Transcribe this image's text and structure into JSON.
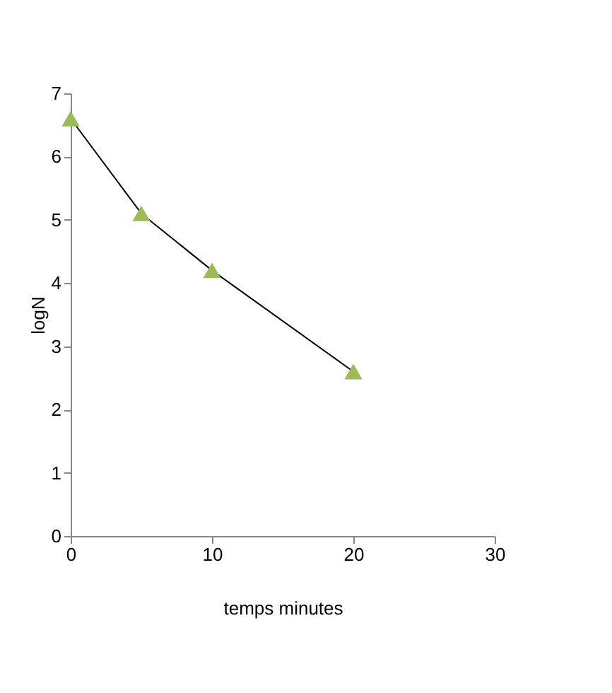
{
  "chart_data": {
    "type": "line",
    "xlabel": "temps minutes",
    "ylabel": "logN",
    "x": [
      0,
      5,
      10,
      20
    ],
    "series": [
      {
        "color": "#9bbb59",
        "values": [
          6.6,
          5.1,
          4.2,
          2.6
        ]
      }
    ],
    "xlim": [
      0,
      30
    ],
    "xticks": [
      0,
      10,
      20,
      30
    ],
    "ylim": [
      0,
      7
    ],
    "yticks": [
      0,
      1,
      2,
      3,
      4,
      5,
      6,
      7
    ],
    "marker": "triangle",
    "line_style": "solid",
    "grid": false,
    "legend": false
  }
}
